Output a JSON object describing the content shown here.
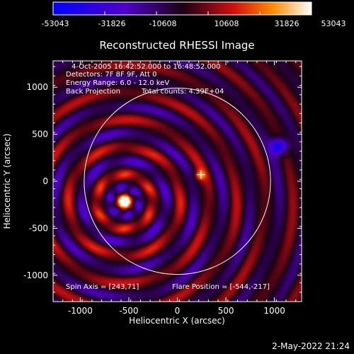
{
  "colorbar": {
    "ticks": [
      "-53043",
      "-31826",
      "-10608",
      "10608",
      "31826",
      "53043"
    ]
  },
  "colors": {
    "background": "#000000",
    "text": "#ffffff",
    "limb_circle": "#ffffff"
  },
  "footer": {
    "date": "2-May-2022 21:24"
  },
  "chart_data": {
    "type": "heatmap",
    "title": "Reconstructed RHESSI Image",
    "xlabel": "Heliocentric X (arcsec)",
    "ylabel": "Heliocentric Y (arcsec)",
    "xlim": [
      -1280,
      1280
    ],
    "ylim": [
      -1280,
      1280
    ],
    "xticks": [
      -1000,
      -500,
      0,
      500,
      1000
    ],
    "yticks": [
      1000,
      500,
      0,
      -500,
      -1000
    ],
    "colorbar_range": [
      -53043,
      53043
    ],
    "annotations": [
      "4-Oct-2005 16:42:52.000 to 16:48:52.000",
      "Detectors: 7F 8F 9F, Att 0",
      "Energy Range: 6.0 - 12.0 keV",
      "Back Projection",
      "Total counts: 4.39E+04",
      "Spin Axis = [243,71]",
      "Flare Position = [-544,-217]"
    ],
    "sources": [
      {
        "x": -544,
        "y": -217,
        "peak": 53043
      },
      {
        "x": 230,
        "y": 60,
        "peak": 30000
      },
      {
        "x": 1050,
        "y": 370,
        "peak": -53043
      }
    ],
    "cross_marker": {
      "x": 243,
      "y": 71
    },
    "solar_limb_center": [
      0,
      0
    ],
    "solar_limb_radius_arcsec": 960
  }
}
